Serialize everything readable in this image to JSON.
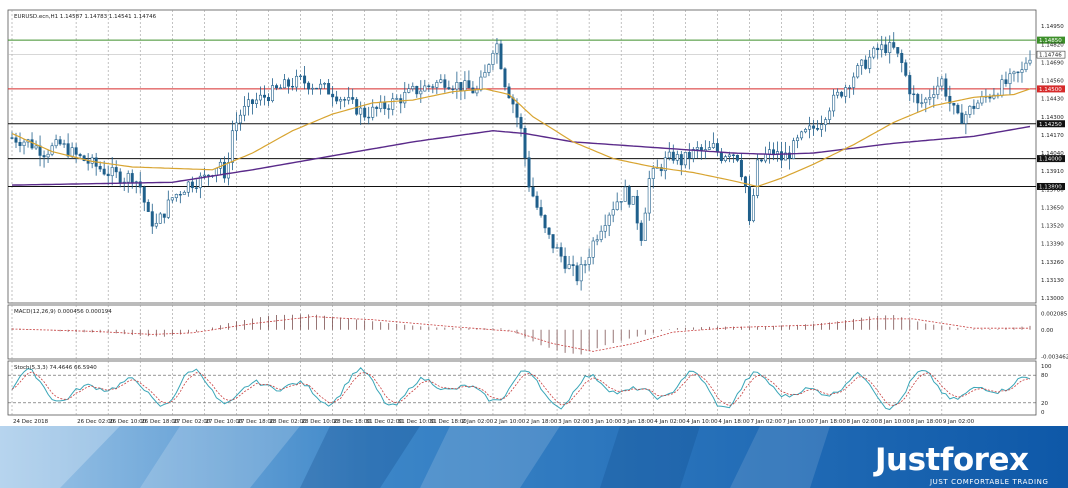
{
  "chart_data": {
    "type": "candlestick",
    "main": {
      "title": "EURUSD.ecn,H1  1.14587 1.14783 1.14541 1.14746",
      "ylim": [
        1.13,
        1.1498
      ],
      "y_ticks": [
        "1.14950",
        "1.14820",
        "1.14690",
        "1.14560",
        "1.14430",
        "1.14300",
        "1.14170",
        "1.14040",
        "1.13910",
        "1.13780",
        "1.13650",
        "1.13520",
        "1.13390",
        "1.13260",
        "1.13130",
        "1.13000"
      ],
      "grid": true,
      "levels": [
        {
          "label": "1.14850",
          "value": 1.1485,
          "color": "#3d8f2a"
        },
        {
          "label": "1.14500",
          "value": 1.145,
          "color": "#d62a2a"
        },
        {
          "label": "1.14250",
          "value": 1.1425,
          "color": "#111111"
        },
        {
          "label": "1.14000",
          "value": 1.14,
          "color": "#111111"
        },
        {
          "label": "1.13800",
          "value": 1.138,
          "color": "#111111"
        }
      ],
      "price_label": {
        "label": "1.14746",
        "value": 1.14746
      },
      "close_path": [
        [
          0,
          1.1415
        ],
        [
          4,
          1.1412
        ],
        [
          8,
          1.1405
        ],
        [
          12,
          1.141
        ],
        [
          16,
          1.1402
        ],
        [
          20,
          1.1396
        ],
        [
          24,
          1.139
        ],
        [
          28,
          1.1386
        ],
        [
          30,
          1.1388
        ],
        [
          32,
          1.138
        ],
        [
          34,
          1.1358
        ],
        [
          36,
          1.1352
        ],
        [
          38,
          1.1362
        ],
        [
          40,
          1.1372
        ],
        [
          44,
          1.1382
        ],
        [
          48,
          1.1386
        ],
        [
          50,
          1.1392
        ],
        [
          52,
          1.1398
        ],
        [
          53,
          1.1382
        ],
        [
          55,
          1.142
        ],
        [
          57,
          1.1432
        ],
        [
          60,
          1.144
        ],
        [
          64,
          1.1446
        ],
        [
          68,
          1.1452
        ],
        [
          72,
          1.1456
        ],
        [
          76,
          1.1452
        ],
        [
          80,
          1.1448
        ],
        [
          84,
          1.144
        ],
        [
          88,
          1.1432
        ],
        [
          92,
          1.1436
        ],
        [
          96,
          1.1442
        ],
        [
          100,
          1.1448
        ],
        [
          104,
          1.1452
        ],
        [
          108,
          1.1456
        ],
        [
          112,
          1.1452
        ],
        [
          116,
          1.1448
        ],
        [
          118,
          1.146
        ],
        [
          120,
          1.148
        ],
        [
          121,
          1.1482
        ],
        [
          123,
          1.1455
        ],
        [
          125,
          1.144
        ],
        [
          127,
          1.142
        ],
        [
          129,
          1.1382
        ],
        [
          131,
          1.1365
        ],
        [
          133,
          1.1348
        ],
        [
          135,
          1.1338
        ],
        [
          137,
          1.133
        ],
        [
          139,
          1.1322
        ],
        [
          141,
          1.1315
        ],
        [
          143,
          1.1325
        ],
        [
          145,
          1.134
        ],
        [
          147,
          1.1352
        ],
        [
          149,
          1.1362
        ],
        [
          151,
          1.137
        ],
        [
          153,
          1.1376
        ],
        [
          155,
          1.1368
        ],
        [
          157,
          1.1345
        ],
        [
          159,
          1.1385
        ],
        [
          161,
          1.1392
        ],
        [
          163,
          1.1398
        ],
        [
          165,
          1.1402
        ],
        [
          167,
          1.1398
        ],
        [
          169,
          1.1402
        ],
        [
          171,
          1.1406
        ],
        [
          173,
          1.1404
        ],
        [
          175,
          1.1408
        ],
        [
          177,
          1.1402
        ],
        [
          179,
          1.1406
        ],
        [
          181,
          1.1402
        ],
        [
          183,
          1.138
        ],
        [
          184,
          1.1352
        ],
        [
          186,
          1.1395
        ],
        [
          188,
          1.1402
        ],
        [
          190,
          1.1405
        ],
        [
          192,
          1.14
        ],
        [
          194,
          1.1404
        ],
        [
          196,
          1.1412
        ],
        [
          198,
          1.1418
        ],
        [
          200,
          1.1422
        ],
        [
          202,
          1.1428
        ],
        [
          204,
          1.1438
        ],
        [
          206,
          1.1445
        ],
        [
          208,
          1.1452
        ],
        [
          210,
          1.146
        ],
        [
          212,
          1.1466
        ],
        [
          214,
          1.1472
        ],
        [
          216,
          1.1478
        ],
        [
          218,
          1.148
        ],
        [
          220,
          1.1478
        ],
        [
          222,
          1.1468
        ],
        [
          224,
          1.145
        ],
        [
          226,
          1.1438
        ],
        [
          228,
          1.1442
        ],
        [
          230,
          1.145
        ],
        [
          232,
          1.1456
        ],
        [
          234,
          1.144
        ],
        [
          236,
          1.1428
        ],
        [
          238,
          1.1432
        ],
        [
          240,
          1.1438
        ],
        [
          242,
          1.1442
        ],
        [
          244,
          1.1446
        ],
        [
          246,
          1.145
        ],
        [
          248,
          1.1454
        ],
        [
          250,
          1.1458
        ],
        [
          252,
          1.1462
        ],
        [
          253,
          1.147
        ],
        [
          254,
          1.14746
        ]
      ],
      "ma_slow": [
        [
          0,
          1.1381
        ],
        [
          20,
          1.1382
        ],
        [
          40,
          1.1383
        ],
        [
          60,
          1.1392
        ],
        [
          80,
          1.1402
        ],
        [
          100,
          1.1412
        ],
        [
          120,
          1.142
        ],
        [
          128,
          1.1418
        ],
        [
          140,
          1.1412
        ],
        [
          160,
          1.1408
        ],
        [
          180,
          1.1404
        ],
        [
          190,
          1.1403
        ],
        [
          200,
          1.1404
        ],
        [
          220,
          1.1411
        ],
        [
          240,
          1.1416
        ],
        [
          254,
          1.1423
        ]
      ],
      "ma_fast": [
        [
          0,
          1.1418
        ],
        [
          10,
          1.1405
        ],
        [
          20,
          1.1398
        ],
        [
          30,
          1.1394
        ],
        [
          40,
          1.1393
        ],
        [
          50,
          1.1392
        ],
        [
          60,
          1.1404
        ],
        [
          70,
          1.142
        ],
        [
          80,
          1.1432
        ],
        [
          90,
          1.144
        ],
        [
          100,
          1.1442
        ],
        [
          110,
          1.1448
        ],
        [
          118,
          1.145
        ],
        [
          124,
          1.1446
        ],
        [
          130,
          1.143
        ],
        [
          140,
          1.1412
        ],
        [
          150,
          1.14
        ],
        [
          160,
          1.1394
        ],
        [
          170,
          1.139
        ],
        [
          180,
          1.1384
        ],
        [
          186,
          1.138
        ],
        [
          192,
          1.1386
        ],
        [
          200,
          1.1396
        ],
        [
          210,
          1.141
        ],
        [
          220,
          1.1426
        ],
        [
          230,
          1.1438
        ],
        [
          240,
          1.1444
        ],
        [
          250,
          1.1446
        ],
        [
          254,
          1.145
        ]
      ]
    },
    "macd": {
      "title": "MACD(12,26,9) 0.000456 0.000194",
      "ylim": [
        -0.0034,
        0.0023
      ],
      "y_ticks": [
        {
          "label": "0.002085",
          "value": 0.00208
        },
        {
          "label": "0.00",
          "value": 0
        },
        {
          "label": "-0.003462",
          "value": -0.00346
        }
      ],
      "hist_path": [
        [
          0,
          0.0002
        ],
        [
          15,
          -0.0003
        ],
        [
          25,
          -0.0004
        ],
        [
          32,
          -0.0008
        ],
        [
          38,
          -0.0009
        ],
        [
          45,
          -0.0004
        ],
        [
          55,
          0.001
        ],
        [
          65,
          0.0019
        ],
        [
          75,
          0.002
        ],
        [
          85,
          0.0014
        ],
        [
          95,
          0.0008
        ],
        [
          105,
          0.0003
        ],
        [
          115,
          0.0002
        ],
        [
          122,
          0.0002
        ],
        [
          126,
          -0.0005
        ],
        [
          132,
          -0.002
        ],
        [
          138,
          -0.003
        ],
        [
          142,
          -0.0032
        ],
        [
          148,
          -0.002
        ],
        [
          155,
          -0.001
        ],
        [
          165,
          0.0002
        ],
        [
          175,
          0.0004
        ],
        [
          185,
          0.0004
        ],
        [
          195,
          0.0006
        ],
        [
          205,
          0.001
        ],
        [
          215,
          0.0018
        ],
        [
          220,
          0.0019
        ],
        [
          228,
          0.0008
        ],
        [
          238,
          0.0001
        ],
        [
          246,
          0.0001
        ],
        [
          254,
          0.0005
        ]
      ],
      "signal_path": [
        [
          0,
          0.0001
        ],
        [
          20,
          -0.0002
        ],
        [
          35,
          -0.0006
        ],
        [
          45,
          -0.0004
        ],
        [
          60,
          0.0008
        ],
        [
          75,
          0.0017
        ],
        [
          90,
          0.0013
        ],
        [
          110,
          0.0004
        ],
        [
          125,
          -0.0002
        ],
        [
          135,
          -0.0018
        ],
        [
          145,
          -0.0028
        ],
        [
          155,
          -0.0018
        ],
        [
          165,
          -0.0003
        ],
        [
          180,
          0.0003
        ],
        [
          200,
          0.0006
        ],
        [
          215,
          0.0014
        ],
        [
          225,
          0.0014
        ],
        [
          240,
          0.0002
        ],
        [
          254,
          0.0002
        ]
      ]
    },
    "stoch": {
      "title": "Stoch(5,3,3) 74.4646 66.5940",
      "ylim": [
        0,
        100
      ],
      "y_ticks": [
        {
          "label": "100",
          "value": 100
        },
        {
          "label": "80",
          "value": 80
        },
        {
          "label": "20",
          "value": 20
        },
        {
          "label": "0",
          "value": 0
        }
      ],
      "levels": [
        80,
        20
      ]
    },
    "x_ticks": [
      {
        "label": "24 Dec 2018",
        "i": 0
      },
      {
        "label": "26 Dec 02:00",
        "i": 16
      },
      {
        "label": "26 Dec 10:00",
        "i": 24
      },
      {
        "label": "26 Dec 18:00",
        "i": 32
      },
      {
        "label": "27 Dec 02:00",
        "i": 40
      },
      {
        "label": "27 Dec 10:00",
        "i": 48
      },
      {
        "label": "27 Dec 18:00",
        "i": 56
      },
      {
        "label": "28 Dec 02:00",
        "i": 64
      },
      {
        "label": "28 Dec 10:00",
        "i": 72
      },
      {
        "label": "28 Dec 18:00",
        "i": 80
      },
      {
        "label": "31 Dec 02:00",
        "i": 88
      },
      {
        "label": "31 Dec 10:00",
        "i": 96
      },
      {
        "label": "31 Dec 18:00",
        "i": 104
      },
      {
        "label": "2 Jan 02:00",
        "i": 112
      },
      {
        "label": "2 Jan 10:00",
        "i": 120
      },
      {
        "label": "2 Jan 18:00",
        "i": 128
      },
      {
        "label": "3 Jan 02:00",
        "i": 136
      },
      {
        "label": "3 Jan 10:00",
        "i": 144
      },
      {
        "label": "3 Jan 18:00",
        "i": 152
      },
      {
        "label": "4 Jan 02:00",
        "i": 160
      },
      {
        "label": "4 Jan 10:00",
        "i": 168
      },
      {
        "label": "4 Jan 18:00",
        "i": 176
      },
      {
        "label": "7 Jan 02:00",
        "i": 184
      },
      {
        "label": "7 Jan 10:00",
        "i": 192
      },
      {
        "label": "7 Jan 18:00",
        "i": 200
      },
      {
        "label": "8 Jan 02:00",
        "i": 208
      },
      {
        "label": "8 Jan 10:00",
        "i": 216
      },
      {
        "label": "8 Jan 18:00",
        "i": 224
      },
      {
        "label": "9 Jan 02:00",
        "i": 232
      }
    ],
    "candle_count": 255,
    "colors": {
      "bull": "#ffffff",
      "bear": "#1f5f8b",
      "wick": "#1f5f8b",
      "ma_fast": "#d8a430",
      "ma_slow": "#5a2a8a",
      "macd_hist": "#6a3a3a",
      "macd_signal": "#c84040",
      "stoch_main": "#3aa6b8",
      "stoch_signal": "#c84040",
      "grid": "#9a9a9a"
    }
  },
  "brand": {
    "name": "Justforex",
    "slogan": "JUST COMFORTABLE TRADING"
  }
}
